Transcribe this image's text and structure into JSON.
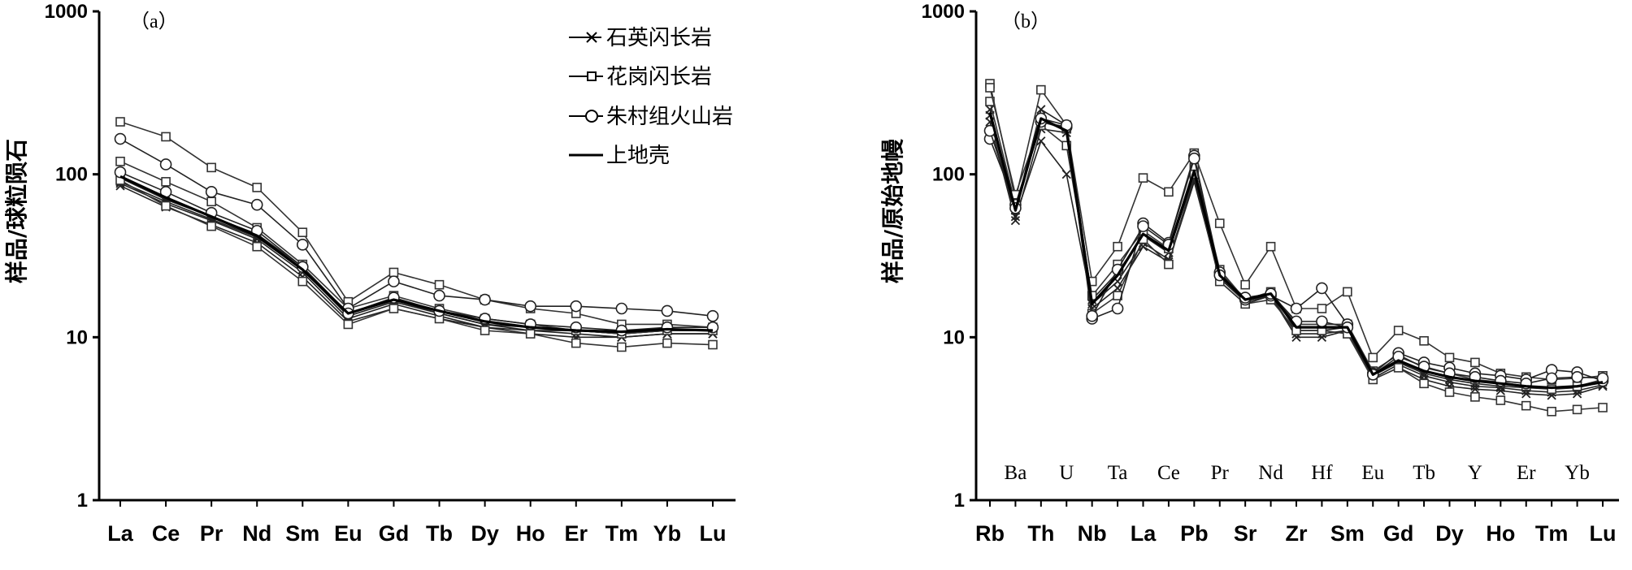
{
  "chart_data": [
    {
      "type": "line",
      "panel_label": "（a）",
      "ylabel": "样品/球粒陨石",
      "yscale": "log",
      "ylim": [
        1,
        1000
      ],
      "yticks": [
        "1",
        "10",
        "100",
        "1000"
      ],
      "categories": [
        "La",
        "Ce",
        "Pr",
        "Nd",
        "Sm",
        "Eu",
        "Gd",
        "Tb",
        "Dy",
        "Ho",
        "Er",
        "Tm",
        "Yb",
        "Lu"
      ],
      "legend": {
        "position": "top-right",
        "entries": [
          {
            "label": "石英闪长岩",
            "marker": "x"
          },
          {
            "label": "花岗闪长岩",
            "marker": "square"
          },
          {
            "label": "朱村组火山岩",
            "marker": "circle"
          },
          {
            "label": "上地壳",
            "marker": "none"
          }
        ]
      },
      "series": [
        {
          "group": "quartz",
          "marker": "x",
          "values": [
            95,
            70,
            55,
            43,
            27,
            14,
            17,
            14,
            12,
            11.5,
            11,
            10.5,
            11,
            11
          ]
        },
        {
          "group": "quartz",
          "marker": "x",
          "values": [
            88,
            66,
            52,
            40,
            25,
            13,
            16,
            13.5,
            11.5,
            11,
            10.5,
            10,
            10.5,
            10.5
          ]
        },
        {
          "group": "quartz",
          "marker": "x",
          "values": [
            90,
            68,
            53,
            41,
            26,
            13.5,
            16.5,
            14,
            12,
            11,
            11,
            10.5,
            11,
            11
          ]
        },
        {
          "group": "quartz",
          "marker": "x",
          "values": [
            85,
            63,
            49,
            38,
            23.5,
            12.5,
            15,
            13,
            11.5,
            10.5,
            10,
            10,
            10.5,
            10.5
          ]
        },
        {
          "group": "granodiorite",
          "marker": "square",
          "values": [
            210,
            170,
            110,
            83,
            44,
            16.5,
            25,
            21,
            17,
            15,
            14,
            12,
            12,
            11.5
          ]
        },
        {
          "group": "granodiorite",
          "marker": "square",
          "values": [
            120,
            90,
            68,
            47,
            28,
            15,
            18,
            15,
            13,
            12,
            11,
            10.5,
            11,
            11
          ]
        },
        {
          "group": "granodiorite",
          "marker": "square",
          "values": [
            92,
            64,
            48,
            36,
            22,
            12,
            15,
            13,
            11,
            10.5,
            9.2,
            8.7,
            9.2,
            9
          ]
        },
        {
          "group": "volcanic",
          "marker": "circle",
          "values": [
            165,
            115,
            78,
            65,
            37,
            15,
            22,
            18,
            17,
            15.5,
            15.5,
            15,
            14.5,
            13.5
          ]
        },
        {
          "group": "volcanic",
          "marker": "circle",
          "values": [
            103,
            78,
            58,
            45,
            27,
            14,
            17.5,
            14.5,
            13,
            12,
            11.5,
            11,
            11.5,
            11.5
          ]
        },
        {
          "group": "upper_crust",
          "marker": "none",
          "values": [
            97,
            72,
            55,
            42,
            26,
            14,
            17,
            14.5,
            12.5,
            11.5,
            11,
            10.8,
            11.2,
            11
          ]
        }
      ]
    },
    {
      "type": "line",
      "panel_label": "（b）",
      "ylabel": "样品/原始地幔",
      "yscale": "log",
      "ylim": [
        1,
        1000
      ],
      "yticks": [
        "1",
        "10",
        "100",
        "1000"
      ],
      "categories": [
        "Rb",
        "Ba",
        "Th",
        "U",
        "Nb",
        "Ta",
        "La",
        "Ce",
        "Pb",
        "Pr",
        "Sr",
        "Nd",
        "Zr",
        "Hf",
        "Sm",
        "Eu",
        "Gd",
        "Tb",
        "Dy",
        "Y",
        "Ho",
        "Er",
        "Tm",
        "Yb",
        "Lu"
      ],
      "bottom_labels": [
        "Rb",
        "Th",
        "Nb",
        "La",
        "Pb",
        "Sr",
        "Zr",
        "Sm",
        "Gd",
        "Dy",
        "Ho",
        "Tm",
        "Lu"
      ],
      "inner_labels": [
        "Ba",
        "U",
        "Ta",
        "Ce",
        "Pr",
        "Nd",
        "Hf",
        "Eu",
        "Tb",
        "Y",
        "Er",
        "Yb"
      ],
      "series": [
        {
          "group": "quartz",
          "marker": "x",
          "values": [
            230,
            55,
            160,
            100,
            16,
            22,
            38,
            30,
            95,
            22,
            16,
            18,
            10,
            10,
            11,
            5.5,
            6.5,
            5.5,
            5,
            4.8,
            4.7,
            4.5,
            4.4,
            4.5,
            5
          ]
        },
        {
          "group": "quartz",
          "marker": "x",
          "values": [
            250,
            60,
            250,
            200,
            17,
            25,
            42,
            33,
            100,
            24,
            17,
            19,
            11,
            11,
            11.5,
            5.8,
            7,
            6,
            5.5,
            5.2,
            5,
            4.9,
            4.8,
            4.9,
            5.3
          ]
        },
        {
          "group": "quartz",
          "marker": "x",
          "values": [
            210,
            52,
            190,
            180,
            15,
            20,
            36,
            29,
            90,
            23,
            16.5,
            18,
            10.5,
            10.5,
            11,
            5.6,
            6.8,
            5.8,
            5.3,
            5,
            4.9,
            4.7,
            4.6,
            4.7,
            5.1
          ]
        },
        {
          "group": "granodiorite",
          "marker": "square",
          "values": [
            360,
            70,
            330,
            200,
            22,
            36,
            95,
            78,
            135,
            50,
            21,
            36,
            15,
            15,
            19,
            7.5,
            11,
            9.5,
            7.5,
            7,
            6,
            5.7,
            5.5,
            5.6,
            5.8
          ]
        },
        {
          "group": "granodiorite",
          "marker": "square",
          "values": [
            280,
            65,
            200,
            150,
            18,
            28,
            45,
            35,
            110,
            26,
            17,
            19,
            12,
            12,
            12,
            6.2,
            7.8,
            6.5,
            6,
            5.5,
            5.3,
            5,
            4.8,
            5,
            5.5
          ]
        },
        {
          "group": "granodiorite",
          "marker": "square",
          "values": [
            340,
            75,
            210,
            190,
            14,
            18,
            40,
            28,
            100,
            22,
            16,
            17,
            11,
            11,
            10.5,
            5.5,
            6.5,
            5.2,
            4.6,
            4.3,
            4.1,
            3.8,
            3.5,
            3.6,
            3.7
          ]
        },
        {
          "group": "volcanic",
          "marker": "circle",
          "values": [
            165,
            65,
            210,
            195,
            13,
            15,
            50,
            38,
            130,
            25,
            17,
            18,
            15,
            20,
            12,
            6,
            8,
            7,
            6.5,
            6,
            5.8,
            5.5,
            6.3,
            6.1,
            5.4
          ]
        },
        {
          "group": "volcanic",
          "marker": "circle",
          "values": [
            185,
            62,
            220,
            200,
            13.5,
            26,
            48,
            37,
            125,
            24,
            17.5,
            18.5,
            12.5,
            12.5,
            11.5,
            5.9,
            7.6,
            6.6,
            6,
            5.7,
            5.4,
            5.2,
            5.6,
            5.7,
            5.6
          ]
        },
        {
          "group": "upper_crust",
          "marker": "none",
          "values": [
            240,
            60,
            220,
            185,
            16,
            24,
            43,
            34,
            105,
            24,
            17,
            18.5,
            11.5,
            11.5,
            11.5,
            5.9,
            7.2,
            6.2,
            5.7,
            5.4,
            5.2,
            5,
            4.9,
            5,
            5.3
          ]
        }
      ]
    }
  ],
  "colors": {
    "quartz": "#222222",
    "granodiorite": "#333333",
    "volcanic": "#222222",
    "upper_crust": "#000000",
    "axis": "#000000"
  }
}
